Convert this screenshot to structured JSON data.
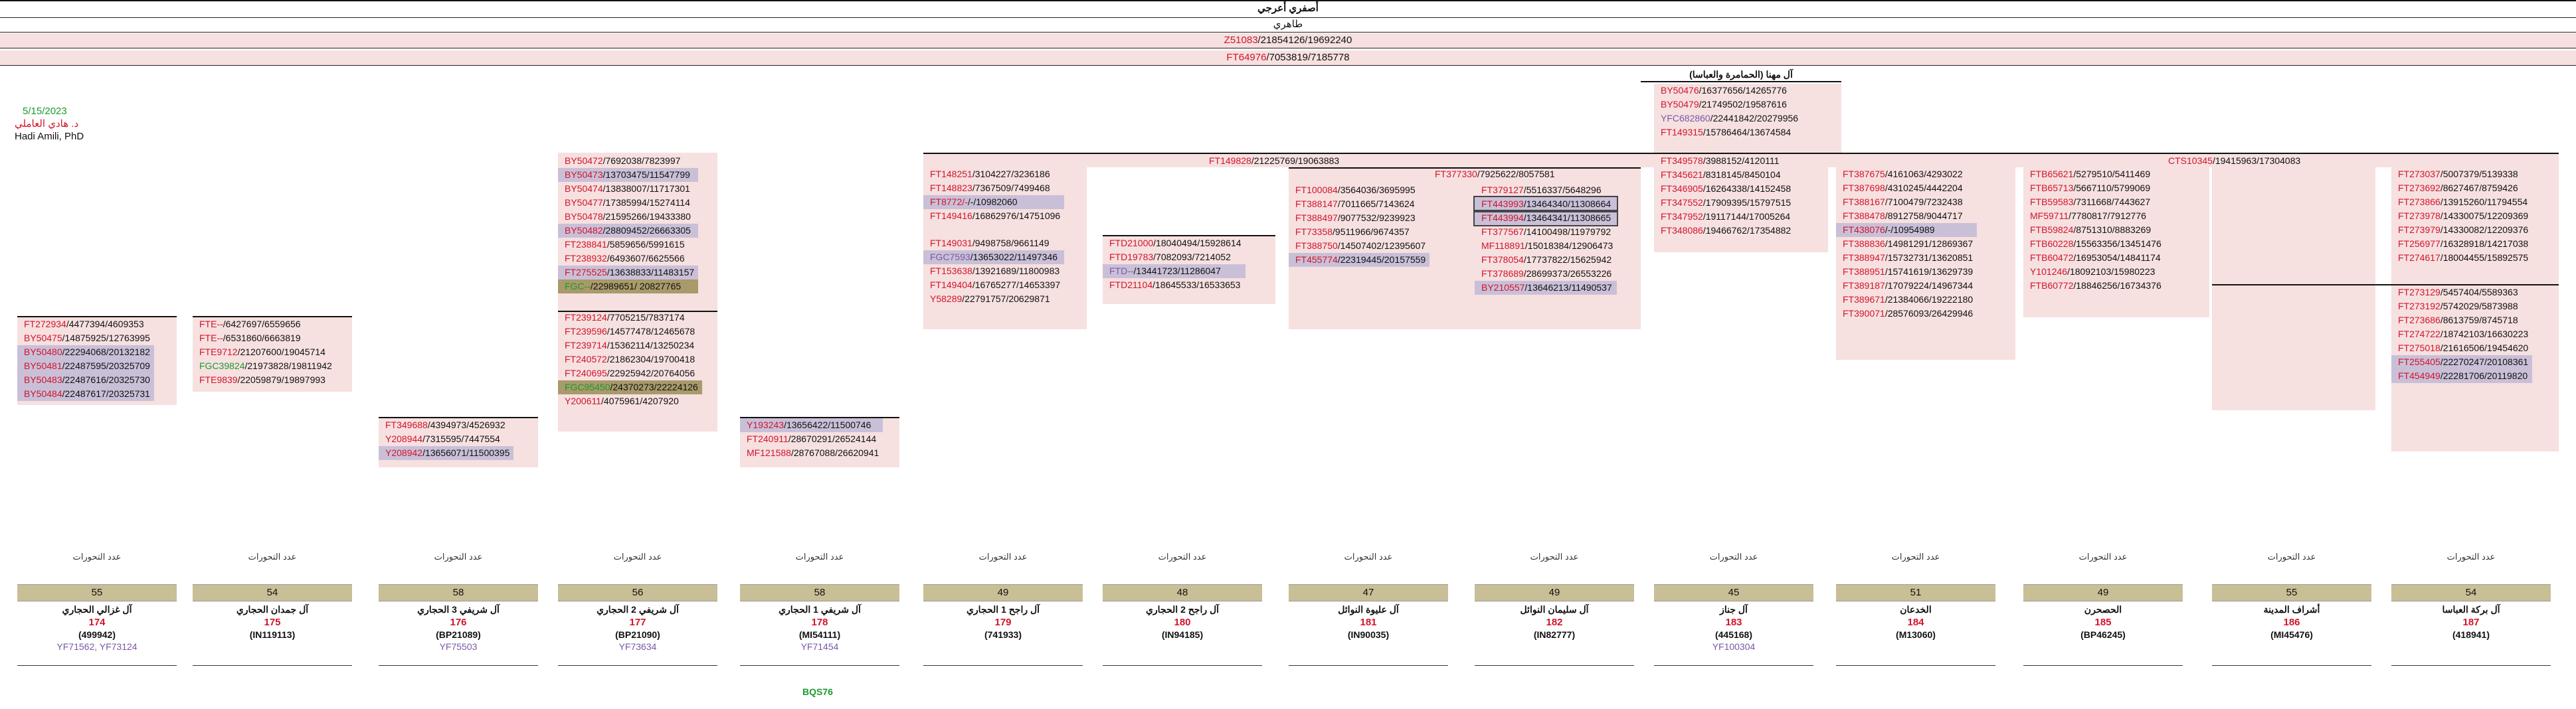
{
  "header": {
    "title": "أصفري أعرجي",
    "subtitle": "طاهري",
    "line1": {
      "hap": "Z51083",
      "nums": "/21854126/19692240"
    },
    "line2": {
      "hap": "FT64976",
      "nums": "/7053819/7185778"
    }
  },
  "meta": {
    "date": "5/15/2023",
    "author_ar": "د. هادي العاملي",
    "author_en": "Hadi Amili, PhD"
  },
  "clan_block": {
    "title": "آل مهنا (الحمامرة والعباسا)",
    "rows": [
      {
        "hap": "BY50476",
        "nums": "/16377656/14265776",
        "cls": "red"
      },
      {
        "hap": "BY50479",
        "nums": "/21749502/19587616",
        "cls": "red"
      },
      {
        "hap": "YFC682860",
        "nums": "/22441842/20279956",
        "cls": "purple"
      },
      {
        "hap": "FT149315",
        "nums": "/15786464/13674584",
        "cls": "red"
      }
    ]
  },
  "mid_bar": {
    "left": {
      "hap": "FT149828",
      "nums": "/21225769/19063883"
    },
    "right": {
      "hap": "CTS10345",
      "nums": "/19415963/17304083"
    }
  },
  "col3": {
    "rows": [
      {
        "hap": "BY50472",
        "nums": "/7692038/7823997",
        "cls": "red",
        "bg": ""
      },
      {
        "hap": "BY50473",
        "nums": "/13703475/11547799",
        "cls": "red",
        "bg": "hl"
      },
      {
        "hap": "BY50474",
        "nums": "/13838007/11717301",
        "cls": "red",
        "bg": ""
      },
      {
        "hap": "BY50477",
        "nums": "/17385994/15274114",
        "cls": "red",
        "bg": ""
      },
      {
        "hap": "BY50478",
        "nums": "/21595266/19433380",
        "cls": "red",
        "bg": ""
      },
      {
        "hap": "BY50482",
        "nums": "/28809452/26663305",
        "cls": "red",
        "bg": "hl"
      },
      {
        "hap": "FT238841",
        "nums": "/5859656/5991615",
        "cls": "red",
        "bg": ""
      },
      {
        "hap": "FT238932",
        "nums": "/6493607/6625566",
        "cls": "red",
        "bg": ""
      },
      {
        "hap": "FT275525",
        "nums": "/13638833/11483157",
        "cls": "red",
        "bg": "hl"
      },
      {
        "hap": "FGC--",
        "nums": "/22989651/ 20827765",
        "cls": "green",
        "bg": "hl2"
      }
    ]
  },
  "col3b": {
    "rows": [
      {
        "hap": "FT239124",
        "nums": "/7705215/7837174",
        "cls": "red",
        "bg": ""
      },
      {
        "hap": "FT239596",
        "nums": "/14577478/12465678",
        "cls": "red",
        "bg": ""
      },
      {
        "hap": "FT239714",
        "nums": "/15362114/13250234",
        "cls": "red",
        "bg": ""
      },
      {
        "hap": "FT240572",
        "nums": "/21862304/19700418",
        "cls": "red",
        "bg": ""
      },
      {
        "hap": "FT240695",
        "nums": "/22925942/20764056",
        "cls": "red",
        "bg": ""
      },
      {
        "hap": "FGC95450",
        "nums": "/24370273/22224126",
        "cls": "green",
        "bg": "hl2"
      },
      {
        "hap": "Y200611",
        "nums": "/4075961/4207920",
        "cls": "red",
        "bg": ""
      }
    ]
  },
  "col1": {
    "rows": [
      {
        "hap": "FT272934",
        "nums": "/4477394/4609353",
        "cls": "red",
        "bg": ""
      },
      {
        "hap": "BY50475",
        "nums": "/14875925/12763995",
        "cls": "red",
        "bg": ""
      },
      {
        "hap": "BY50480",
        "nums": "/22294068/20132182",
        "cls": "red",
        "bg": "hl"
      },
      {
        "hap": "BY50481",
        "nums": "/22487595/20325709",
        "cls": "red",
        "bg": "hl"
      },
      {
        "hap": "BY50483",
        "nums": "/22487616/20325730",
        "cls": "red",
        "bg": "hl"
      },
      {
        "hap": "BY50484",
        "nums": "/22487617/20325731",
        "cls": "red",
        "bg": "hl"
      }
    ]
  },
  "col2": {
    "rows": [
      {
        "hap": "FTE--",
        "nums": "/6427697/6559656",
        "cls": "red",
        "bg": ""
      },
      {
        "hap": "FTE--",
        "nums": "/6531860/6663819",
        "cls": "red",
        "bg": ""
      },
      {
        "hap": "FTE9712",
        "nums": "/21207600/19045714",
        "cls": "red",
        "bg": ""
      },
      {
        "hap": "FGC39824",
        "nums": "/21973828/19811942",
        "cls": "green",
        "bg": ""
      },
      {
        "hap": "FTE9839",
        "nums": "/22059879/19897993",
        "cls": "red",
        "bg": ""
      }
    ]
  },
  "col_y": {
    "rows": [
      {
        "hap": "FT349688",
        "nums": "/4394973/4526932",
        "cls": "red",
        "bg": ""
      },
      {
        "hap": "Y208944",
        "nums": "/7315595/7447554",
        "cls": "red",
        "bg": ""
      },
      {
        "hap": "Y208942",
        "nums": "/13656071/11500395",
        "cls": "red",
        "bg": "hl"
      }
    ]
  },
  "col_y2": {
    "rows": [
      {
        "hap": "Y193243",
        "nums": "/13656422/11500746",
        "cls": "red",
        "bg": "hl"
      },
      {
        "hap": "FT240911",
        "nums": "/28670291/26524144",
        "cls": "red",
        "bg": ""
      },
      {
        "hap": "MF121588",
        "nums": "/28767088/26620941",
        "cls": "red",
        "bg": ""
      }
    ]
  },
  "col_ft148": {
    "rows": [
      {
        "hap": "FT148251",
        "nums": "/3104227/3236186",
        "cls": "red",
        "bg": ""
      },
      {
        "hap": "FT148823",
        "nums": "/7367509/7499468",
        "cls": "red",
        "bg": ""
      },
      {
        "hap": "FT8772/-",
        "nums": "/-/10982060",
        "cls": "red",
        "bg": "hl"
      },
      {
        "hap": "FT149416",
        "nums": "/16862976/14751096",
        "cls": "red",
        "bg": ""
      }
    ]
  },
  "col_ft149": {
    "rows": [
      {
        "hap": "FT149031",
        "nums": "/9498758/9661149",
        "cls": "red",
        "bg": ""
      },
      {
        "hap": "FGC7593",
        "nums": "/13653022/11497346",
        "cls": "purple",
        "bg": "hl"
      },
      {
        "hap": "FT153638",
        "nums": "/13921689/11800983",
        "cls": "red",
        "bg": ""
      },
      {
        "hap": "FT149404",
        "nums": "/16765277/14653397",
        "cls": "red",
        "bg": ""
      },
      {
        "hap": "Y58289",
        "nums": "/22791757/20629871",
        "cls": "red",
        "bg": ""
      }
    ]
  },
  "col_ftd": {
    "rows": [
      {
        "hap": "FTD21000",
        "nums": "/18040494/15928614",
        "cls": "red",
        "bg": ""
      },
      {
        "hap": "FTD19783",
        "nums": "/7082093/7214052",
        "cls": "red",
        "bg": ""
      },
      {
        "hap": "FTD--",
        "nums": "/13441723/11286047",
        "cls": "purple",
        "bg": "hl"
      },
      {
        "hap": "FTD21104",
        "nums": "/18645533/16533653",
        "cls": "red",
        "bg": ""
      }
    ]
  },
  "col_ft377": {
    "title": {
      "hap": "FT377330",
      "nums": "/7925622/8057581"
    },
    "rows": [
      {
        "hap": "FT100084",
        "nums": "/3564036/3695995",
        "cls": "red",
        "bg": ""
      },
      {
        "hap": "FT388147",
        "nums": "/7011665/7143624",
        "cls": "red",
        "bg": ""
      },
      {
        "hap": "FT388497",
        "nums": "/9077532/9239923",
        "cls": "red",
        "bg": ""
      },
      {
        "hap": "FT73358",
        "nums": "/9511966/9674357",
        "cls": "red",
        "bg": ""
      },
      {
        "hap": "FT388750",
        "nums": "/14507402/12395607",
        "cls": "red",
        "bg": ""
      },
      {
        "hap": "FT455774",
        "nums": "/22319445/20157559",
        "cls": "red",
        "bg": "hl"
      }
    ]
  },
  "col_ft379": {
    "rows": [
      {
        "hap": "FT379127",
        "nums": "/5516337/5648296",
        "cls": "red",
        "bg": ""
      },
      {
        "hap": "FT443993",
        "nums": "/13464340/11308664",
        "cls": "red",
        "bg": "hl box"
      },
      {
        "hap": "FT443994",
        "nums": "/13464341/11308665",
        "cls": "red",
        "bg": "hl box"
      },
      {
        "hap": "FT377567",
        "nums": "/14100498/11979792",
        "cls": "red",
        "bg": ""
      },
      {
        "hap": "MF118891",
        "nums": "/15018384/12906473",
        "cls": "red",
        "bg": ""
      },
      {
        "hap": "FT378054",
        "nums": "/17737822/15625942",
        "cls": "red",
        "bg": ""
      },
      {
        "hap": "FT378689",
        "nums": "/28699373/26553226",
        "cls": "red",
        "bg": ""
      },
      {
        "hap": "BY210557",
        "nums": "/13646213/11490537",
        "cls": "red",
        "bg": "hl"
      }
    ]
  },
  "col_ft349": {
    "rows": [
      {
        "hap": "FT349578",
        "nums": "/3988152/4120111",
        "cls": "red",
        "bg": ""
      },
      {
        "hap": "FT345621",
        "nums": "/8318145/8450104",
        "cls": "red",
        "bg": ""
      },
      {
        "hap": "FT346905",
        "nums": "/16264338/14152458",
        "cls": "red",
        "bg": ""
      },
      {
        "hap": "FT347552",
        "nums": "/17909395/15797515",
        "cls": "red",
        "bg": ""
      },
      {
        "hap": "FT347952",
        "nums": "/19117144/17005264",
        "cls": "red",
        "bg": ""
      },
      {
        "hap": "FT348086",
        "nums": "/19466762/17354882",
        "cls": "red",
        "bg": ""
      }
    ]
  },
  "col_ft387": {
    "rows": [
      {
        "hap": "FT387675",
        "nums": "/4161063/4293022",
        "cls": "red",
        "bg": ""
      },
      {
        "hap": "FT387698",
        "nums": "/4310245/4442204",
        "cls": "red",
        "bg": ""
      },
      {
        "hap": "FT388167",
        "nums": "/7100479/7232438",
        "cls": "red",
        "bg": ""
      },
      {
        "hap": "FT388478",
        "nums": "/8912758/9044717",
        "cls": "red",
        "bg": ""
      },
      {
        "hap": "FT438076",
        "nums": "/-/10954989",
        "cls": "red",
        "bg": "hl"
      },
      {
        "hap": "FT388836",
        "nums": "/14981291/12869367",
        "cls": "red",
        "bg": ""
      },
      {
        "hap": "FT388947",
        "nums": "/15732731/13620851",
        "cls": "red",
        "bg": ""
      },
      {
        "hap": "FT388951",
        "nums": "/15741619/13629739",
        "cls": "red",
        "bg": ""
      },
      {
        "hap": "FT389187",
        "nums": "/17079224/14967344",
        "cls": "red",
        "bg": ""
      },
      {
        "hap": "FT389671",
        "nums": "/21384066/19222180",
        "cls": "red",
        "bg": ""
      },
      {
        "hap": "FT390071",
        "nums": "/28576093/26429946",
        "cls": "red",
        "bg": ""
      }
    ]
  },
  "col_ftb": {
    "rows": [
      {
        "hap": "FTB65621",
        "nums": "/5279510/5411469",
        "cls": "red",
        "bg": ""
      },
      {
        "hap": "FTB65713",
        "nums": "/5667110/5799069",
        "cls": "red",
        "bg": ""
      },
      {
        "hap": "FTB59583",
        "nums": "/7311668/7443627",
        "cls": "red",
        "bg": ""
      },
      {
        "hap": "MF59711",
        "nums": "/7780817/7912776",
        "cls": "red",
        "bg": ""
      },
      {
        "hap": "FTB59824",
        "nums": "/8751310/8883269",
        "cls": "red",
        "bg": ""
      },
      {
        "hap": "FTB60228",
        "nums": "/15563356/13451476",
        "cls": "red",
        "bg": ""
      },
      {
        "hap": "FTB60472",
        "nums": "/16953054/14841174",
        "cls": "red",
        "bg": ""
      },
      {
        "hap": "Y101246",
        "nums": "/18092103/15980223",
        "cls": "red",
        "bg": ""
      },
      {
        "hap": "FTB60772",
        "nums": "/18846256/16734376",
        "cls": "red",
        "bg": ""
      }
    ]
  },
  "col_ft273": {
    "rows": [
      {
        "hap": "FT273037",
        "nums": "/5007379/5139338",
        "cls": "red",
        "bg": ""
      },
      {
        "hap": "FT273692",
        "nums": "/8627467/8759426",
        "cls": "red",
        "bg": ""
      },
      {
        "hap": "FT273866",
        "nums": "/13915260/11794554",
        "cls": "red",
        "bg": ""
      },
      {
        "hap": "FT273978",
        "nums": "/14330075/12209369",
        "cls": "red",
        "bg": ""
      },
      {
        "hap": "FT273979",
        "nums": "/14330082/12209376",
        "cls": "red",
        "bg": ""
      },
      {
        "hap": "FT256977",
        "nums": "/16328918/14217038",
        "cls": "red",
        "bg": ""
      },
      {
        "hap": "FT274617",
        "nums": "/18004455/15892575",
        "cls": "red",
        "bg": ""
      }
    ]
  },
  "col_ft273b": {
    "rows": [
      {
        "hap": "FT273129",
        "nums": "/5457404/5589363",
        "cls": "red",
        "bg": ""
      },
      {
        "hap": "FT273192",
        "nums": "/5742029/5873988",
        "cls": "red",
        "bg": ""
      },
      {
        "hap": "FT273686",
        "nums": "/8613759/8745718",
        "cls": "red",
        "bg": ""
      },
      {
        "hap": "FT274722",
        "nums": "/18742103/16630223",
        "cls": "red",
        "bg": ""
      },
      {
        "hap": "FT275018",
        "nums": "/21616506/19454620",
        "cls": "red",
        "bg": ""
      },
      {
        "hap": "FT255405",
        "nums": "/22270247/20108361",
        "cls": "red",
        "bg": "hl"
      },
      {
        "hap": "FT454949",
        "nums": "/22281706/20119820",
        "cls": "red",
        "bg": "hl"
      }
    ]
  },
  "footer": [
    {
      "cap": "عدد التحورات",
      "num": "55",
      "name": "آل غزالي الحجاري",
      "id": "174",
      "code": "(499942)",
      "extra": "YF71562, YF73124"
    },
    {
      "cap": "عدد التحورات",
      "num": "54",
      "name": "آل جمدان الحجاري",
      "id": "175",
      "code": "(IN119113)",
      "extra": ""
    },
    {
      "cap": "عدد التحورات",
      "num": "58",
      "name": "آل شريفي 3 الحجاري",
      "id": "176",
      "code": "(BP21089)",
      "extra": "YF75503"
    },
    {
      "cap": "عدد التحورات",
      "num": "56",
      "name": "آل شريفي 2 الحجاري",
      "id": "177",
      "code": "(BP21090)",
      "extra": "YF73634"
    },
    {
      "cap": "عدد التحورات",
      "num": "58",
      "name": "آل شريفي 1 الحجاري",
      "id": "178",
      "code": "(MI54111)",
      "extra": "YF71454"
    },
    {
      "cap": "عدد التحورات",
      "num": "49",
      "name": "آل راجح 1 الحجاري",
      "id": "179",
      "code": "(741933)",
      "extra": ""
    },
    {
      "cap": "عدد التحورات",
      "num": "48",
      "name": "آل راجح 2 الحجاري",
      "id": "180",
      "code": "(IN94185)",
      "extra": ""
    },
    {
      "cap": "عدد التحورات",
      "num": "47",
      "name": "آل عليوة النوائل",
      "id": "181",
      "code": "(IN90035)",
      "extra": ""
    },
    {
      "cap": "عدد التحورات",
      "num": "49",
      "name": "آل سليمان النوائل",
      "id": "182",
      "code": "(IN82777)",
      "extra": ""
    },
    {
      "cap": "عدد التحورات",
      "num": "45",
      "name": "آل جناز",
      "id": "183",
      "code": "(445168)",
      "extra": "YF100304"
    },
    {
      "cap": "عدد التحورات",
      "num": "51",
      "name": "الخدعان",
      "id": "184",
      "code": "(M13060)",
      "extra": ""
    },
    {
      "cap": "عدد التحورات",
      "num": "49",
      "name": "الحصحرن",
      "id": "185",
      "code": "(BP46245)",
      "extra": ""
    },
    {
      "cap": "عدد التحورات",
      "num": "55",
      "name": "أشراف المدينة",
      "id": "186",
      "code": "(MI45476)",
      "extra": ""
    },
    {
      "cap": "عدد التحورات",
      "num": "54",
      "name": "آل بركة العباسا",
      "id": "187",
      "code": "(418941)",
      "extra": ""
    }
  ],
  "footer_note": "BQS76"
}
